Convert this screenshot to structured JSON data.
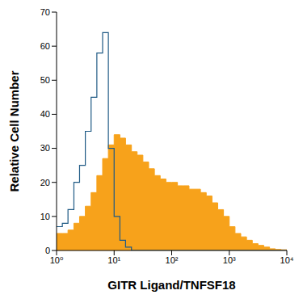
{
  "chart_data": {
    "type": "area",
    "x_label": "GITR Ligand/TNFSF18",
    "y_label": "Relative Cell Number",
    "x": [
      1,
      1.26,
      1.58,
      2,
      2.51,
      3.16,
      3.98,
      5.01,
      6.31,
      7.94,
      10,
      12.6,
      15.8,
      20,
      25.1,
      31.6,
      39.8,
      50.1,
      63.1,
      79.4,
      100,
      126,
      158,
      200,
      251,
      316,
      398,
      501,
      631,
      794,
      1000,
      1259,
      1585,
      1995,
      2512,
      3162,
      3981,
      5012,
      6310,
      7943,
      10000
    ],
    "series": [
      {
        "type": "area",
        "color": "#f7a21b",
        "values": [
          5,
          5,
          6,
          8,
          10,
          13,
          17,
          22,
          27,
          31,
          34,
          33,
          31,
          29,
          28,
          26,
          24,
          22,
          21,
          20,
          20,
          19,
          19,
          18,
          18,
          17,
          16,
          14,
          12,
          10,
          7,
          5,
          4,
          3,
          2,
          1.5,
          1,
          0.5,
          0.3,
          0.2,
          0
        ]
      },
      {
        "type": "line",
        "color": "#1f5a85",
        "values": [
          7,
          8,
          12,
          20,
          25,
          35,
          45,
          58,
          64,
          30,
          10,
          3,
          1,
          0,
          0,
          0,
          0,
          0,
          0,
          0,
          0,
          0,
          0,
          0,
          0,
          0,
          0,
          0,
          0,
          0,
          0,
          0,
          0,
          0,
          0,
          0,
          0,
          0,
          0,
          0,
          0
        ]
      }
    ],
    "log": "x",
    "grid": false,
    "xlim": [
      1,
      10000
    ],
    "xticks": [
      {
        "value": 1,
        "label": "10⁰"
      },
      {
        "value": 10,
        "label": "10¹"
      },
      {
        "value": 100,
        "label": "10²"
      },
      {
        "value": 1000,
        "label": "10³"
      },
      {
        "value": 10000,
        "label": "10⁴"
      }
    ],
    "ylim": [
      0,
      70
    ],
    "yticks": [
      0,
      10,
      20,
      30,
      40,
      50,
      60,
      70
    ]
  }
}
